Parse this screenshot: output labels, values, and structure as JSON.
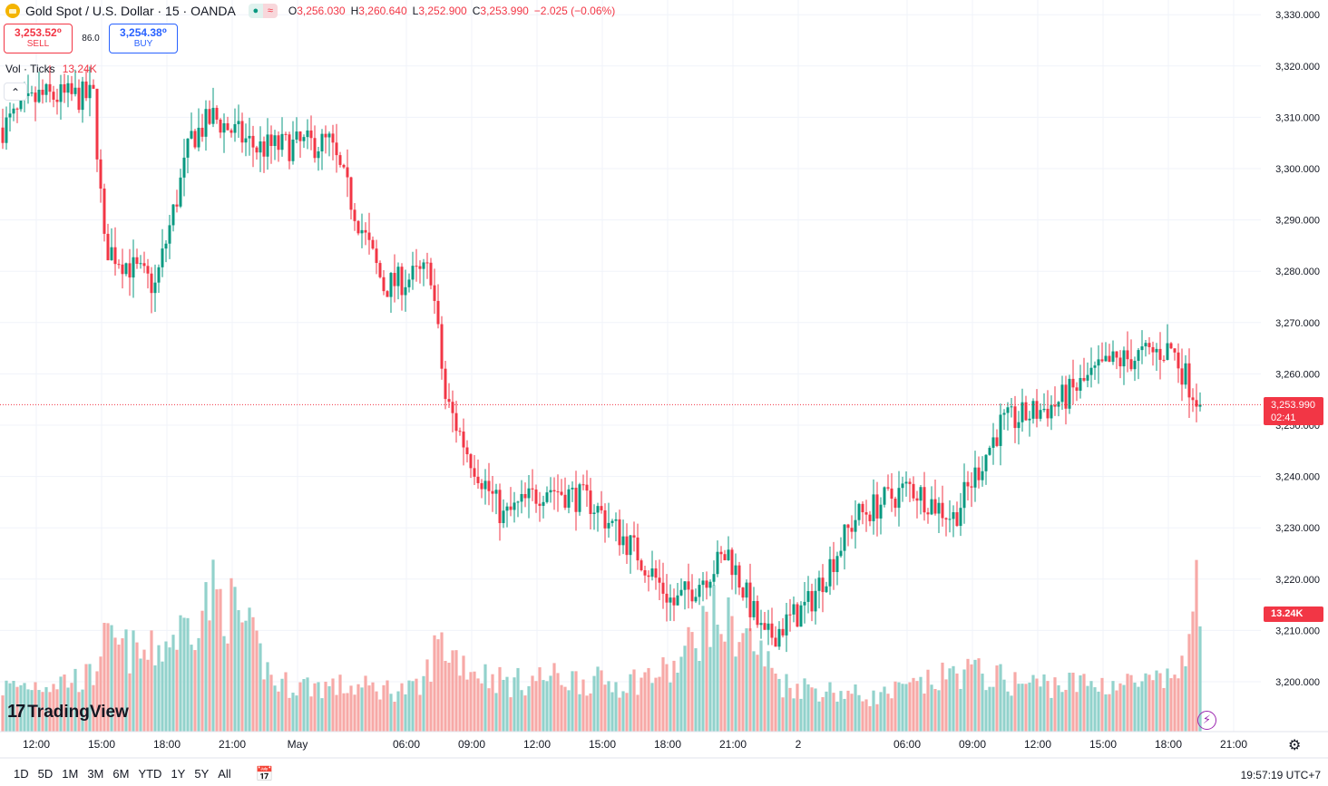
{
  "header": {
    "symbol_title": "Gold Spot / U.S. Dollar · 15 · OANDA",
    "pill_icon_1": "circle-dot-icon",
    "pill_icon_2": "wave-icon",
    "ohlc": {
      "o_label": "O",
      "o_value": "3,256.030",
      "h_label": "H",
      "h_value": "3,260.640",
      "l_label": "L",
      "l_value": "3,252.900",
      "c_label": "C",
      "c_value": "3,253.990",
      "change": "−2.025 (−0.06%)"
    }
  },
  "trade": {
    "sell_price": "3,253.52⁰",
    "sell_label": "SELL",
    "spread": "86.0",
    "buy_price": "3,254.38⁰",
    "buy_label": "BUY"
  },
  "volume_legend": {
    "label": "Vol · Ticks",
    "value": "13.24K"
  },
  "collapse_icon": "chevron-up-icon",
  "price_axis": {
    "ticks": [
      "3,330.000",
      "3,320.000",
      "3,310.000",
      "3,300.000",
      "3,290.000",
      "3,280.000",
      "3,270.000",
      "3,260.000",
      "3,250.000",
      "3,240.000",
      "3,230.000",
      "3,220.000",
      "3,210.000",
      "3,200.000"
    ],
    "tick_values": [
      3330,
      3320,
      3310,
      3300,
      3290,
      3280,
      3270,
      3260,
      3250,
      3240,
      3230,
      3220,
      3210,
      3200
    ],
    "current_price": "3,253.990",
    "countdown": "02:41",
    "current_value": 3253.99,
    "volume_label": "13.24K"
  },
  "time_axis": {
    "labels": [
      "12:00",
      "15:00",
      "18:00",
      "21:00",
      "May",
      "06:00",
      "09:00",
      "12:00",
      "15:00",
      "18:00",
      "21:00",
      "2",
      "06:00",
      "09:00",
      "12:00",
      "15:00",
      "18:00",
      "21:00"
    ]
  },
  "logo": {
    "mark": "17",
    "text": "TradingView"
  },
  "bottom_bar": {
    "timeframes": [
      "1D",
      "5D",
      "1M",
      "3M",
      "6M",
      "YTD",
      "1Y",
      "5Y",
      "All"
    ],
    "calendar_icon": "calendar-range-icon",
    "clock": "19:57:19 UTC+7"
  },
  "colors": {
    "up": "#089981",
    "down": "#f23645",
    "vol_up": "#92d2cc",
    "vol_down": "#f7a9a7"
  },
  "chart_data": {
    "type": "candlestick",
    "title": "Gold Spot / U.S. Dollar · 15 · OANDA",
    "y_range": [
      3193,
      3333
    ],
    "key_points": [
      {
        "i": 0,
        "price": 3308
      },
      {
        "i": 10,
        "price": 3314
      },
      {
        "i": 25,
        "price": 3314
      },
      {
        "i": 28,
        "price": 3285
      },
      {
        "i": 42,
        "price": 3277
      },
      {
        "i": 52,
        "price": 3306
      },
      {
        "i": 58,
        "price": 3310
      },
      {
        "i": 70,
        "price": 3304
      },
      {
        "i": 90,
        "price": 3305
      },
      {
        "i": 105,
        "price": 3277
      },
      {
        "i": 118,
        "price": 3280
      },
      {
        "i": 122,
        "price": 3255
      },
      {
        "i": 128,
        "price": 3245
      },
      {
        "i": 138,
        "price": 3232
      },
      {
        "i": 150,
        "price": 3238
      },
      {
        "i": 162,
        "price": 3235
      },
      {
        "i": 175,
        "price": 3225
      },
      {
        "i": 185,
        "price": 3215
      },
      {
        "i": 200,
        "price": 3225
      },
      {
        "i": 210,
        "price": 3208
      },
      {
        "i": 222,
        "price": 3215
      },
      {
        "i": 235,
        "price": 3232
      },
      {
        "i": 250,
        "price": 3238
      },
      {
        "i": 262,
        "price": 3232
      },
      {
        "i": 275,
        "price": 3250
      },
      {
        "i": 290,
        "price": 3254
      },
      {
        "i": 305,
        "price": 3262
      },
      {
        "i": 322,
        "price": 3265
      },
      {
        "i": 330,
        "price": 3254
      }
    ],
    "volume_profile": [
      {
        "i": 0,
        "v": 3200
      },
      {
        "i": 25,
        "v": 4000
      },
      {
        "i": 27,
        "v": 6500
      },
      {
        "i": 40,
        "v": 5500
      },
      {
        "i": 50,
        "v": 7500
      },
      {
        "i": 58,
        "v": 10000
      },
      {
        "i": 65,
        "v": 8500
      },
      {
        "i": 75,
        "v": 3500
      },
      {
        "i": 115,
        "v": 3000
      },
      {
        "i": 120,
        "v": 6500
      },
      {
        "i": 130,
        "v": 4500
      },
      {
        "i": 140,
        "v": 3500
      },
      {
        "i": 150,
        "v": 4000
      },
      {
        "i": 170,
        "v": 3500
      },
      {
        "i": 185,
        "v": 4500
      },
      {
        "i": 195,
        "v": 8500
      },
      {
        "i": 205,
        "v": 7000
      },
      {
        "i": 215,
        "v": 3500
      },
      {
        "i": 240,
        "v": 2500
      },
      {
        "i": 255,
        "v": 3500
      },
      {
        "i": 265,
        "v": 4500
      },
      {
        "i": 280,
        "v": 3500
      },
      {
        "i": 300,
        "v": 3500
      },
      {
        "i": 320,
        "v": 3500
      },
      {
        "i": 327,
        "v": 5500
      },
      {
        "i": 329,
        "v": 13240
      },
      {
        "i": 330,
        "v": 9000
      }
    ],
    "grid": true,
    "legend": "top-left"
  }
}
